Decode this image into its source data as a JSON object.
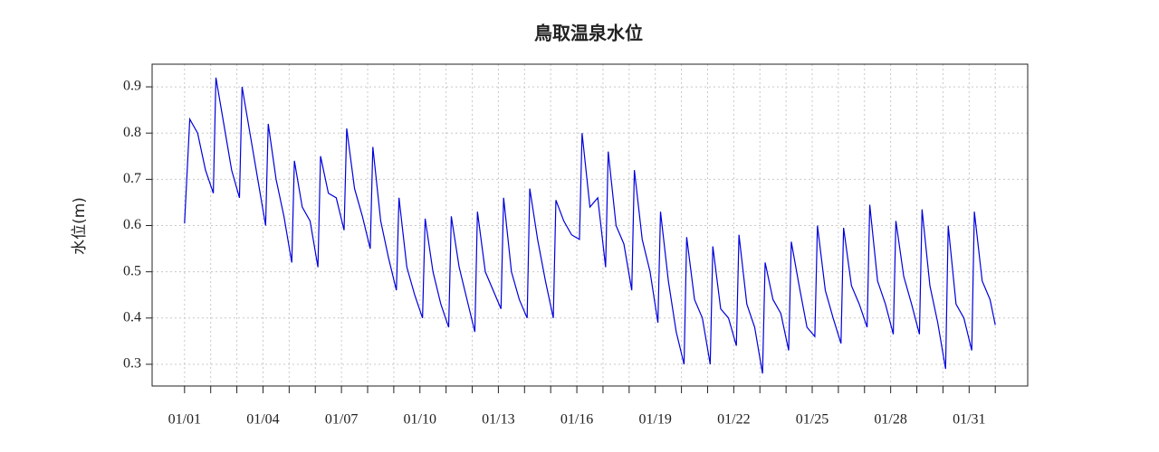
{
  "chart_data": {
    "type": "line",
    "title": "鳥取温泉水位",
    "y_label": "水位(m)",
    "color": "#0000dd",
    "grid": true,
    "x": [
      1.0,
      1.2,
      1.5,
      1.8,
      2.1,
      2.2,
      2.5,
      2.8,
      3.1,
      3.2,
      3.5,
      3.8,
      4.1,
      4.2,
      4.5,
      4.8,
      5.1,
      5.2,
      5.5,
      5.8,
      6.1,
      6.2,
      6.5,
      6.8,
      7.1,
      7.2,
      7.5,
      7.8,
      8.1,
      8.2,
      8.5,
      8.8,
      9.1,
      9.2,
      9.5,
      9.8,
      10.1,
      10.2,
      10.5,
      10.8,
      11.1,
      11.2,
      11.5,
      11.8,
      12.1,
      12.2,
      12.5,
      12.8,
      13.1,
      13.2,
      13.5,
      13.8,
      14.1,
      14.2,
      14.5,
      14.8,
      15.1,
      15.2,
      15.5,
      15.8,
      16.1,
      16.2,
      16.5,
      16.8,
      17.1,
      17.2,
      17.5,
      17.8,
      18.1,
      18.2,
      18.5,
      18.8,
      19.1,
      19.2,
      19.5,
      19.8,
      20.1,
      20.2,
      20.5,
      20.8,
      21.1,
      21.2,
      21.5,
      21.8,
      22.1,
      22.2,
      22.5,
      22.8,
      23.1,
      23.2,
      23.5,
      23.8,
      24.1,
      24.2,
      24.5,
      24.8,
      25.1,
      25.2,
      25.5,
      25.8,
      26.1,
      26.2,
      26.5,
      26.8,
      27.1,
      27.2,
      27.5,
      27.8,
      28.1,
      28.2,
      28.5,
      28.8,
      29.1,
      29.2,
      29.5,
      29.8,
      30.1,
      30.2,
      30.5,
      30.8,
      31.1,
      31.2,
      31.5,
      31.8,
      32.0
    ],
    "values": [
      0.605,
      0.83,
      0.8,
      0.72,
      0.67,
      0.92,
      0.82,
      0.72,
      0.66,
      0.9,
      0.8,
      0.7,
      0.6,
      0.82,
      0.7,
      0.62,
      0.52,
      0.74,
      0.64,
      0.61,
      0.51,
      0.75,
      0.67,
      0.66,
      0.59,
      0.81,
      0.68,
      0.62,
      0.55,
      0.77,
      0.61,
      0.53,
      0.46,
      0.66,
      0.51,
      0.45,
      0.4,
      0.615,
      0.5,
      0.43,
      0.38,
      0.62,
      0.51,
      0.44,
      0.37,
      0.63,
      0.5,
      0.46,
      0.42,
      0.66,
      0.5,
      0.44,
      0.4,
      0.68,
      0.57,
      0.48,
      0.4,
      0.655,
      0.61,
      0.58,
      0.57,
      0.8,
      0.64,
      0.66,
      0.51,
      0.76,
      0.6,
      0.56,
      0.46,
      0.72,
      0.57,
      0.5,
      0.39,
      0.63,
      0.48,
      0.37,
      0.3,
      0.575,
      0.44,
      0.4,
      0.3,
      0.555,
      0.42,
      0.4,
      0.34,
      0.58,
      0.43,
      0.38,
      0.28,
      0.52,
      0.44,
      0.41,
      0.33,
      0.565,
      0.47,
      0.38,
      0.36,
      0.6,
      0.46,
      0.4,
      0.345,
      0.595,
      0.47,
      0.43,
      0.38,
      0.645,
      0.48,
      0.43,
      0.365,
      0.61,
      0.49,
      0.43,
      0.365,
      0.635,
      0.47,
      0.39,
      0.29,
      0.6,
      0.43,
      0.4,
      0.33,
      0.63,
      0.48,
      0.44,
      0.385
    ],
    "xlim": [
      -0.24,
      33.24
    ],
    "xticks": [
      {
        "value": 1,
        "label": "01/01"
      },
      {
        "value": 2,
        "label": null
      },
      {
        "value": 3,
        "label": null
      },
      {
        "value": 4,
        "label": "01/04"
      },
      {
        "value": 5,
        "label": null
      },
      {
        "value": 6,
        "label": null
      },
      {
        "value": 7,
        "label": "01/07"
      },
      {
        "value": 8,
        "label": null
      },
      {
        "value": 9,
        "label": null
      },
      {
        "value": 10,
        "label": "01/10"
      },
      {
        "value": 11,
        "label": null
      },
      {
        "value": 12,
        "label": null
      },
      {
        "value": 13,
        "label": "01/13"
      },
      {
        "value": 14,
        "label": null
      },
      {
        "value": 15,
        "label": null
      },
      {
        "value": 16,
        "label": "01/16"
      },
      {
        "value": 17,
        "label": null
      },
      {
        "value": 18,
        "label": null
      },
      {
        "value": 19,
        "label": "01/19"
      },
      {
        "value": 20,
        "label": null
      },
      {
        "value": 21,
        "label": null
      },
      {
        "value": 22,
        "label": "01/22"
      },
      {
        "value": 23,
        "label": null
      },
      {
        "value": 24,
        "label": null
      },
      {
        "value": 25,
        "label": "01/25"
      },
      {
        "value": 26,
        "label": null
      },
      {
        "value": 27,
        "label": null
      },
      {
        "value": 28,
        "label": "01/28"
      },
      {
        "value": 29,
        "label": null
      },
      {
        "value": 30,
        "label": null
      },
      {
        "value": 31,
        "label": "01/31"
      },
      {
        "value": 32,
        "label": null
      }
    ],
    "ylim": [
      0.253,
      0.949
    ],
    "yticks": [
      0.3,
      0.4,
      0.5,
      0.6,
      0.7,
      0.8,
      0.9
    ]
  }
}
